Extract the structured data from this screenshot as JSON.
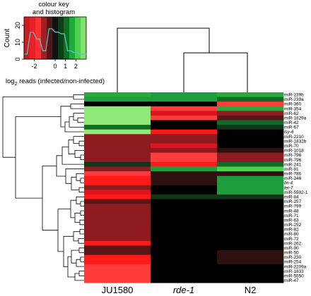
{
  "chart_data": {
    "type": "heatmap",
    "colour_key": {
      "title_line1": "colour key",
      "title_line2": "and histogram",
      "ylabel": "Count",
      "xlabel_prefix": "log",
      "xlabel_sub": "2",
      "xlabel_suffix": " reads (infected/non-infected)",
      "yticks": [
        "0",
        "10",
        "20"
      ],
      "ytick_values": [
        0,
        10,
        20
      ],
      "ylim": [
        0,
        25
      ],
      "xticks": [
        "-2",
        "0",
        "1",
        "2"
      ],
      "xtick_values": [
        -2,
        0,
        1,
        2
      ],
      "xlim": [
        -3,
        3
      ],
      "bins": [
        "#c81e24",
        "#e81f27",
        "#ff3030",
        "#a51d23",
        "#5a1416",
        "#111111",
        "#0f3d19",
        "#136b27",
        "#1fa83c",
        "#4cd14c",
        "#7fe36b"
      ],
      "histogram_x": [
        -3.0,
        -2.7,
        -2.4,
        -2.1,
        -1.8,
        -1.5,
        -1.2,
        -0.9,
        -0.6,
        -0.3,
        0.0,
        0.3,
        0.6,
        0.9,
        1.2,
        1.5,
        1.8,
        2.1,
        2.4,
        2.7,
        3.0
      ],
      "histogram_y": [
        3,
        3,
        16,
        16,
        12,
        12,
        5,
        5,
        18,
        18,
        16,
        16,
        15,
        15,
        5,
        5,
        4,
        4,
        3,
        3,
        3
      ]
    },
    "columns": [
      "JU1580",
      "rde-1",
      "N2"
    ],
    "column_italic": [
      false,
      true,
      false
    ],
    "rows": [
      "miR-239b",
      "miR-239a",
      "miR-360",
      "miR-354",
      "miR-62",
      "miR-1829a",
      "miR-42",
      "miR-67",
      "lsy-6",
      "miR-2210",
      "miR-1832b",
      "miR-70",
      "miR-1018",
      "miR-796",
      "miR-796",
      "miR-241",
      "miR-81",
      "miR-786",
      "miR-246",
      "lin-4",
      "let-7",
      "miR-5592-1",
      "miR-84",
      "miR-257",
      "miR-799",
      "miR-48",
      "miR-71",
      "miR-63",
      "miR-252",
      "miR-82",
      "miR-80",
      "miR-72",
      "miR-262",
      "miR-90",
      "miR-50",
      "miR-230",
      "miR-254",
      "miR-2209a",
      "miR-1833",
      "miR-5550",
      "miR-47"
    ],
    "row_italic": [
      false,
      false,
      false,
      false,
      false,
      false,
      false,
      false,
      true,
      false,
      false,
      false,
      false,
      false,
      false,
      false,
      false,
      false,
      false,
      true,
      true,
      false,
      false,
      false,
      false,
      false,
      false,
      false,
      false,
      false,
      false,
      false,
      false,
      false,
      false,
      false,
      false,
      false,
      false,
      false,
      false
    ],
    "values": [
      [
        1.6,
        1.4,
        1.6
      ],
      [
        1.3,
        1.3,
        1.2
      ],
      [
        -0.1,
        -0.1,
        -3.0
      ],
      [
        3.0,
        -3.0,
        1.6
      ],
      [
        3.0,
        -1.8,
        -1.5
      ],
      [
        3.0,
        -2.6,
        -1.0
      ],
      [
        3.0,
        0.0,
        1.1
      ],
      [
        1.2,
        0.0,
        0.7
      ],
      [
        2.6,
        -2.2,
        0.0
      ],
      [
        -1.6,
        -1.6,
        0.0
      ],
      [
        -1.6,
        -1.4,
        0.0
      ],
      [
        -1.6,
        -1.7,
        0.0
      ],
      [
        -1.6,
        -1.6,
        -0.4
      ],
      [
        -1.6,
        -2.5,
        -1.5
      ],
      [
        -1.6,
        -2.6,
        -1.4
      ],
      [
        0.6,
        -2.4,
        1.2
      ],
      [
        -1.6,
        1.4,
        2.4
      ],
      [
        -3.0,
        -0.4,
        -0.2
      ],
      [
        -2.2,
        -0.3,
        1.3
      ],
      [
        -2.2,
        -0.3,
        1.3
      ],
      [
        -1.4,
        0.0,
        1.3
      ],
      [
        -1.8,
        0.0,
        1.3
      ],
      [
        -2.2,
        0.6,
        0.6
      ],
      [
        -1.0,
        0.0,
        0.0
      ],
      [
        -1.4,
        0.0,
        0.0
      ],
      [
        -1.4,
        0.0,
        0.0
      ],
      [
        -1.4,
        0.0,
        0.0
      ],
      [
        -1.4,
        0.0,
        0.0
      ],
      [
        -1.4,
        0.0,
        0.0
      ],
      [
        -1.4,
        0.0,
        0.0
      ],
      [
        -1.4,
        0.0,
        0.0
      ],
      [
        -1.6,
        0.0,
        0.0
      ],
      [
        -2.0,
        0.0,
        0.0
      ],
      [
        -0.8,
        0.0,
        0.0
      ],
      [
        -0.8,
        0.0,
        -0.5
      ],
      [
        -2.2,
        0.0,
        -0.5
      ],
      [
        -2.2,
        0.0,
        -0.5
      ],
      [
        -3.0,
        0.0,
        0.0
      ],
      [
        -3.0,
        0.0,
        0.0
      ],
      [
        -3.0,
        0.0,
        0.0
      ],
      [
        -3.0,
        0.0,
        0.0
      ]
    ]
  }
}
